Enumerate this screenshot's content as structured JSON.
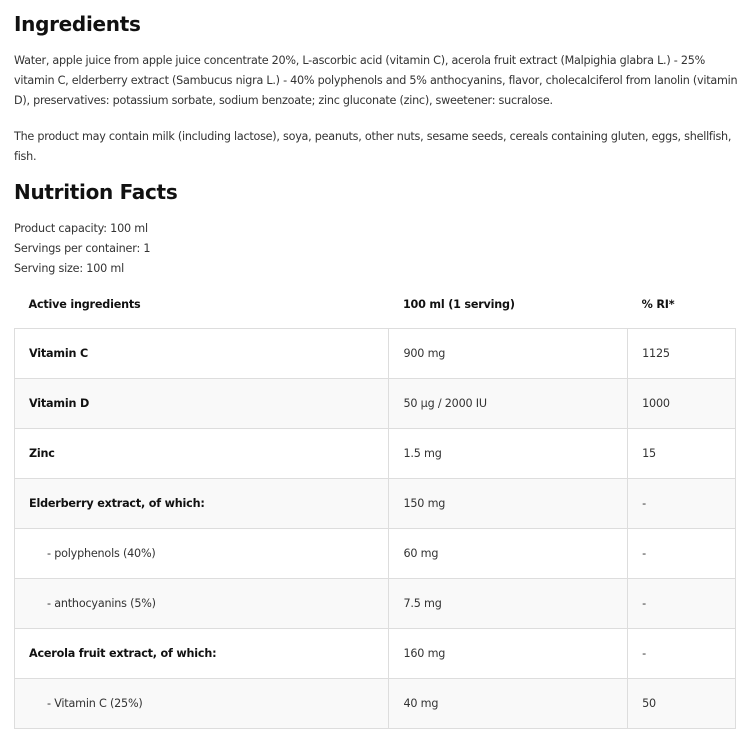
{
  "ingredients": {
    "title": "Ingredients",
    "text": "Water, apple juice from apple juice concentrate 20%, L-ascorbic acid (vitamin C), acerola fruit extract (Malpighia glabra L.) - 25% vitamin C, elderberry extract (Sambucus nigra L.) - 40% polyphenols and 5% anthocyanins, flavor, cholecalciferol from lanolin (vitamin D), preservatives: potassium sorbate, sodium benzoate; zinc gluconate (zinc), sweetener: sucralose.",
    "allergens": "The product may contain milk (including lactose), soya, peanuts, other nuts, sesame seeds, cereals containing gluten, eggs, shellfish, fish."
  },
  "nutrition": {
    "title": "Nutrition Facts",
    "capacity": "Product capacity: 100 ml",
    "servings": "Servings per container: 1",
    "serving_size": "Serving size: 100 ml",
    "headers": [
      "Active ingredients",
      "100 ml (1 serving)",
      "% RI*"
    ],
    "rows": [
      {
        "name": "Vitamin C",
        "amount": "900 mg",
        "ri": "1125"
      },
      {
        "name": "Vitamin D",
        "amount": "50 µg / 2000 IU",
        "ri": "1000"
      },
      {
        "name": "Zinc",
        "amount": "1.5 mg",
        "ri": "15"
      },
      {
        "name": "Elderberry extract, of which:",
        "amount": "150 mg",
        "ri": "-"
      },
      {
        "name": "- polyphenols (40%)",
        "amount": "60 mg",
        "ri": "-"
      },
      {
        "name": "- anthocyanins (5%)",
        "amount": "7.5 mg",
        "ri": "-"
      },
      {
        "name": "Acerola fruit extract, of which:",
        "amount": "160 mg",
        "ri": "-"
      },
      {
        "name": "- Vitamin C (25%)",
        "amount": "40 mg",
        "ri": "50"
      }
    ]
  }
}
